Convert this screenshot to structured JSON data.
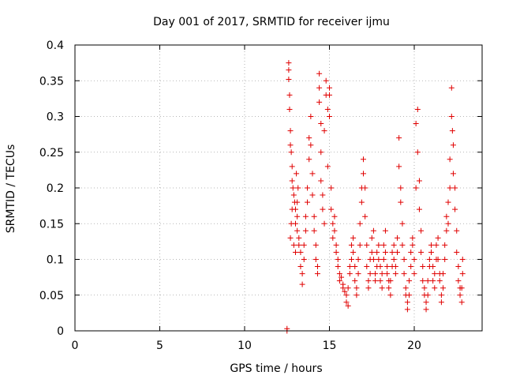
{
  "chart_data": {
    "type": "scatter",
    "title": "Day 001 of 2017, SRMTID for receiver ijmu",
    "xlabel": "GPS time / hours",
    "ylabel": "SRMTID / TECUs",
    "xlim": [
      0,
      24
    ],
    "ylim": [
      0,
      0.4
    ],
    "xticks": [
      0,
      5,
      10,
      15,
      20
    ],
    "yticks": [
      0,
      0.05,
      0.1,
      0.15,
      0.2,
      0.25,
      0.3,
      0.35,
      0.4
    ],
    "xtick_labels": [
      "0",
      "5",
      "10",
      "15",
      "20"
    ],
    "ytick_labels": [
      "0",
      "0.05",
      "0.1",
      "0.15",
      "0.2",
      "0.25",
      "0.3",
      "0.35",
      "0.4"
    ],
    "grid": true,
    "marker": "+",
    "color": "#e00000",
    "series": [
      {
        "name": "SRMTID",
        "points": [
          [
            12.5,
            0.0
          ],
          [
            12.5,
            0.003
          ],
          [
            12.6,
            0.375
          ],
          [
            12.6,
            0.365
          ],
          [
            12.6,
            0.352
          ],
          [
            12.65,
            0.33
          ],
          [
            12.65,
            0.31
          ],
          [
            12.7,
            0.28
          ],
          [
            12.7,
            0.26
          ],
          [
            12.75,
            0.25
          ],
          [
            12.8,
            0.23
          ],
          [
            12.8,
            0.21
          ],
          [
            12.85,
            0.2
          ],
          [
            12.9,
            0.19
          ],
          [
            12.95,
            0.18
          ],
          [
            13.0,
            0.17
          ],
          [
            13.0,
            0.15
          ],
          [
            13.1,
            0.14
          ],
          [
            13.1,
            0.16
          ],
          [
            13.2,
            0.13
          ],
          [
            13.2,
            0.12
          ],
          [
            13.3,
            0.11
          ],
          [
            13.3,
            0.09
          ],
          [
            13.4,
            0.08
          ],
          [
            13.4,
            0.065
          ],
          [
            13.5,
            0.1
          ],
          [
            13.5,
            0.12
          ],
          [
            13.6,
            0.14
          ],
          [
            12.7,
            0.13
          ],
          [
            12.75,
            0.15
          ],
          [
            12.8,
            0.17
          ],
          [
            12.9,
            0.12
          ],
          [
            13.0,
            0.11
          ],
          [
            13.05,
            0.22
          ],
          [
            13.1,
            0.18
          ],
          [
            13.15,
            0.2
          ],
          [
            13.6,
            0.16
          ],
          [
            13.7,
            0.18
          ],
          [
            13.7,
            0.2
          ],
          [
            13.8,
            0.24
          ],
          [
            13.8,
            0.27
          ],
          [
            13.9,
            0.26
          ],
          [
            13.9,
            0.3
          ],
          [
            14.0,
            0.22
          ],
          [
            14.0,
            0.19
          ],
          [
            14.1,
            0.16
          ],
          [
            14.1,
            0.14
          ],
          [
            14.2,
            0.12
          ],
          [
            14.2,
            0.1
          ],
          [
            14.3,
            0.08
          ],
          [
            14.3,
            0.09
          ],
          [
            14.4,
            0.36
          ],
          [
            14.4,
            0.34
          ],
          [
            14.4,
            0.32
          ],
          [
            14.5,
            0.29
          ],
          [
            14.5,
            0.25
          ],
          [
            14.5,
            0.21
          ],
          [
            14.6,
            0.19
          ],
          [
            14.6,
            0.17
          ],
          [
            14.7,
            0.15
          ],
          [
            14.7,
            0.28
          ],
          [
            14.8,
            0.35
          ],
          [
            14.8,
            0.33
          ],
          [
            14.9,
            0.31
          ],
          [
            14.9,
            0.23
          ],
          [
            15.0,
            0.33
          ],
          [
            15.0,
            0.34
          ],
          [
            15.0,
            0.3
          ],
          [
            15.1,
            0.2
          ],
          [
            15.1,
            0.17
          ],
          [
            15.2,
            0.15
          ],
          [
            15.2,
            0.13
          ],
          [
            15.3,
            0.16
          ],
          [
            15.3,
            0.14
          ],
          [
            15.4,
            0.12
          ],
          [
            15.4,
            0.11
          ],
          [
            15.5,
            0.1
          ],
          [
            15.5,
            0.09
          ],
          [
            15.6,
            0.08
          ],
          [
            15.6,
            0.07
          ],
          [
            15.7,
            0.075
          ],
          [
            15.8,
            0.065
          ],
          [
            15.8,
            0.06
          ],
          [
            15.9,
            0.055
          ],
          [
            16.0,
            0.05
          ],
          [
            16.0,
            0.04
          ],
          [
            16.1,
            0.035
          ],
          [
            16.1,
            0.06
          ],
          [
            16.2,
            0.08
          ],
          [
            16.2,
            0.09
          ],
          [
            16.3,
            0.1
          ],
          [
            16.3,
            0.12
          ],
          [
            16.4,
            0.13
          ],
          [
            16.4,
            0.11
          ],
          [
            16.5,
            0.09
          ],
          [
            16.5,
            0.07
          ],
          [
            16.6,
            0.06
          ],
          [
            16.6,
            0.05
          ],
          [
            16.7,
            0.08
          ],
          [
            16.7,
            0.1
          ],
          [
            16.8,
            0.12
          ],
          [
            16.8,
            0.15
          ],
          [
            16.9,
            0.18
          ],
          [
            16.9,
            0.2
          ],
          [
            17.0,
            0.22
          ],
          [
            17.0,
            0.24
          ],
          [
            17.1,
            0.2
          ],
          [
            17.1,
            0.16
          ],
          [
            17.2,
            0.12
          ],
          [
            17.2,
            0.09
          ],
          [
            17.3,
            0.07
          ],
          [
            17.3,
            0.06
          ],
          [
            17.4,
            0.08
          ],
          [
            17.4,
            0.1
          ],
          [
            17.5,
            0.11
          ],
          [
            17.5,
            0.13
          ],
          [
            17.6,
            0.14
          ],
          [
            17.6,
            0.1
          ],
          [
            17.7,
            0.08
          ],
          [
            17.7,
            0.07
          ],
          [
            17.8,
            0.09
          ],
          [
            17.8,
            0.11
          ],
          [
            17.9,
            0.12
          ],
          [
            17.9,
            0.1
          ],
          [
            18.0,
            0.09
          ],
          [
            18.0,
            0.07
          ],
          [
            18.1,
            0.06
          ],
          [
            18.1,
            0.08
          ],
          [
            18.2,
            0.1
          ],
          [
            18.2,
            0.12
          ],
          [
            18.3,
            0.14
          ],
          [
            18.3,
            0.11
          ],
          [
            18.4,
            0.09
          ],
          [
            18.4,
            0.08
          ],
          [
            18.5,
            0.07
          ],
          [
            18.5,
            0.06
          ],
          [
            18.6,
            0.05
          ],
          [
            18.6,
            0.07
          ],
          [
            18.7,
            0.09
          ],
          [
            18.7,
            0.11
          ],
          [
            18.8,
            0.12
          ],
          [
            18.8,
            0.1
          ],
          [
            18.9,
            0.08
          ],
          [
            18.9,
            0.09
          ],
          [
            19.0,
            0.11
          ],
          [
            19.0,
            0.13
          ],
          [
            19.1,
            0.27
          ],
          [
            19.1,
            0.23
          ],
          [
            19.2,
            0.2
          ],
          [
            19.2,
            0.18
          ],
          [
            19.3,
            0.15
          ],
          [
            19.3,
            0.12
          ],
          [
            19.4,
            0.1
          ],
          [
            19.4,
            0.08
          ],
          [
            19.5,
            0.06
          ],
          [
            19.5,
            0.05
          ],
          [
            19.6,
            0.04
          ],
          [
            19.6,
            0.03
          ],
          [
            19.7,
            0.05
          ],
          [
            19.7,
            0.07
          ],
          [
            19.8,
            0.09
          ],
          [
            19.8,
            0.11
          ],
          [
            19.9,
            0.13
          ],
          [
            19.9,
            0.12
          ],
          [
            20.0,
            0.1
          ],
          [
            20.0,
            0.08
          ],
          [
            20.1,
            0.2
          ],
          [
            20.1,
            0.29
          ],
          [
            20.2,
            0.31
          ],
          [
            20.2,
            0.25
          ],
          [
            20.3,
            0.21
          ],
          [
            20.3,
            0.17
          ],
          [
            20.4,
            0.14
          ],
          [
            20.4,
            0.11
          ],
          [
            20.5,
            0.09
          ],
          [
            20.5,
            0.07
          ],
          [
            20.6,
            0.06
          ],
          [
            20.6,
            0.05
          ],
          [
            20.7,
            0.04
          ],
          [
            20.7,
            0.03
          ],
          [
            20.8,
            0.05
          ],
          [
            20.8,
            0.07
          ],
          [
            20.9,
            0.09
          ],
          [
            20.9,
            0.1
          ],
          [
            21.0,
            0.12
          ],
          [
            21.0,
            0.11
          ],
          [
            21.1,
            0.09
          ],
          [
            21.1,
            0.07
          ],
          [
            21.2,
            0.06
          ],
          [
            21.2,
            0.08
          ],
          [
            21.3,
            0.1
          ],
          [
            21.3,
            0.12
          ],
          [
            21.4,
            0.13
          ],
          [
            21.4,
            0.1
          ],
          [
            21.5,
            0.08
          ],
          [
            21.5,
            0.07
          ],
          [
            21.6,
            0.05
          ],
          [
            21.6,
            0.04
          ],
          [
            21.7,
            0.06
          ],
          [
            21.7,
            0.08
          ],
          [
            21.8,
            0.1
          ],
          [
            21.8,
            0.12
          ],
          [
            21.9,
            0.14
          ],
          [
            21.9,
            0.16
          ],
          [
            22.0,
            0.18
          ],
          [
            22.0,
            0.15
          ],
          [
            22.1,
            0.2
          ],
          [
            22.1,
            0.24
          ],
          [
            22.2,
            0.34
          ],
          [
            22.2,
            0.3
          ],
          [
            22.25,
            0.28
          ],
          [
            22.3,
            0.26
          ],
          [
            22.3,
            0.22
          ],
          [
            22.4,
            0.2
          ],
          [
            22.4,
            0.17
          ],
          [
            22.5,
            0.14
          ],
          [
            22.5,
            0.11
          ],
          [
            22.6,
            0.09
          ],
          [
            22.6,
            0.07
          ],
          [
            22.7,
            0.06
          ],
          [
            22.7,
            0.05
          ],
          [
            22.8,
            0.04
          ],
          [
            22.8,
            0.06
          ],
          [
            22.85,
            0.08
          ],
          [
            22.85,
            0.1
          ]
        ]
      }
    ]
  }
}
